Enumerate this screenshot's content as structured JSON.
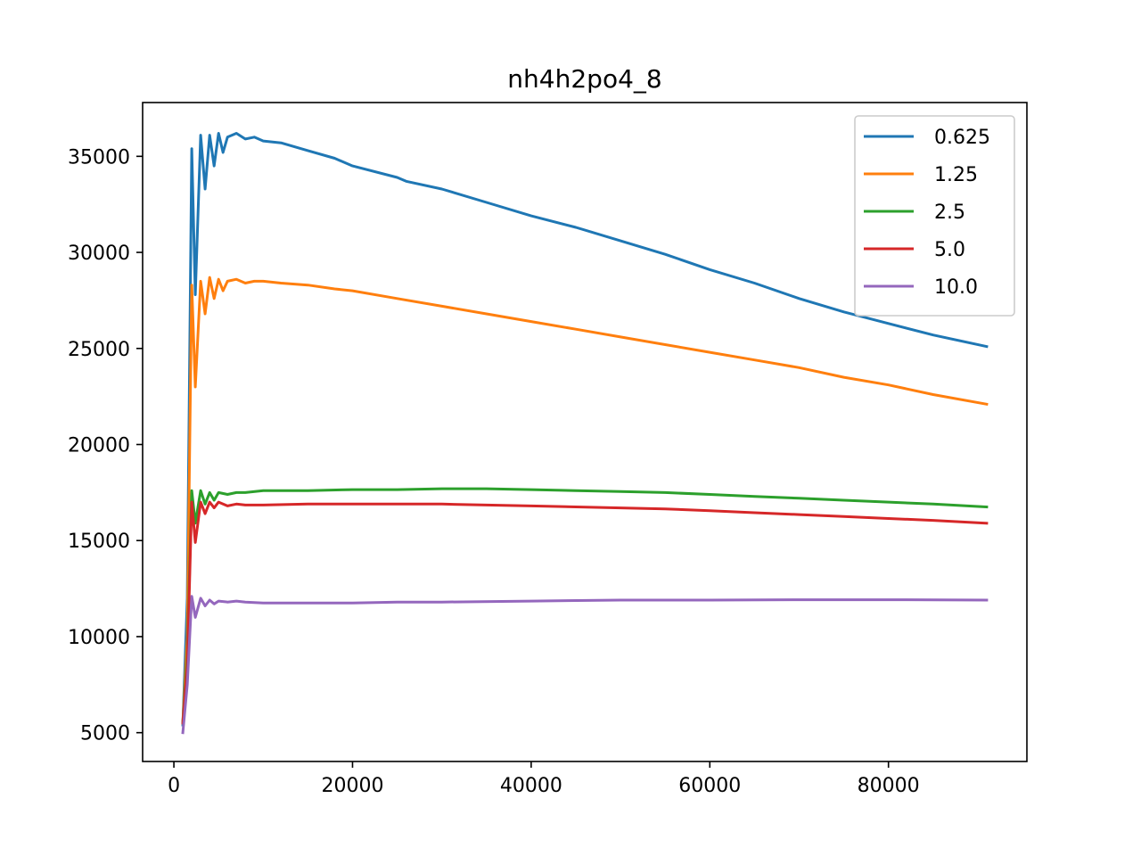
{
  "chart_data": {
    "type": "line",
    "title": "nh4h2po4_8",
    "xlabel": "",
    "ylabel": "",
    "xlim": [
      -3500,
      95500
    ],
    "ylim": [
      3500,
      37800
    ],
    "x_ticks": [
      0,
      20000,
      40000,
      60000,
      80000
    ],
    "x_tick_labels": [
      "0",
      "20000",
      "40000",
      "60000",
      "80000"
    ],
    "y_ticks": [
      5000,
      10000,
      15000,
      20000,
      25000,
      30000,
      35000
    ],
    "y_tick_labels": [
      "5000",
      "10000",
      "15000",
      "20000",
      "25000",
      "30000",
      "35000"
    ],
    "grid": false,
    "legend_position": "top-right",
    "series": [
      {
        "name": "0.625",
        "color": "#1f77b4",
        "points": [
          [
            1000,
            5400
          ],
          [
            1500,
            12000
          ],
          [
            2000,
            35400
          ],
          [
            2400,
            27800
          ],
          [
            3000,
            36100
          ],
          [
            3500,
            33300
          ],
          [
            4000,
            36100
          ],
          [
            4500,
            34500
          ],
          [
            5000,
            36200
          ],
          [
            5500,
            35200
          ],
          [
            6000,
            36000
          ],
          [
            7000,
            36200
          ],
          [
            8000,
            35900
          ],
          [
            9000,
            36000
          ],
          [
            10000,
            35800
          ],
          [
            12000,
            35700
          ],
          [
            15000,
            35300
          ],
          [
            18000,
            34900
          ],
          [
            20000,
            34500
          ],
          [
            25000,
            33900
          ],
          [
            26000,
            33700
          ],
          [
            30000,
            33300
          ],
          [
            35000,
            32600
          ],
          [
            40000,
            31900
          ],
          [
            45000,
            31300
          ],
          [
            50000,
            30600
          ],
          [
            55000,
            29900
          ],
          [
            60000,
            29100
          ],
          [
            65000,
            28400
          ],
          [
            70000,
            27600
          ],
          [
            75000,
            26900
          ],
          [
            80000,
            26300
          ],
          [
            85000,
            25700
          ],
          [
            91000,
            25100
          ]
        ]
      },
      {
        "name": "1.25",
        "color": "#ff7f0e",
        "points": [
          [
            1000,
            5500
          ],
          [
            1500,
            10000
          ],
          [
            2000,
            28300
          ],
          [
            2400,
            23000
          ],
          [
            3000,
            28500
          ],
          [
            3500,
            26800
          ],
          [
            4000,
            28700
          ],
          [
            4500,
            27600
          ],
          [
            5000,
            28600
          ],
          [
            5500,
            28000
          ],
          [
            6000,
            28500
          ],
          [
            7000,
            28600
          ],
          [
            8000,
            28400
          ],
          [
            9000,
            28500
          ],
          [
            10000,
            28500
          ],
          [
            12000,
            28400
          ],
          [
            15000,
            28300
          ],
          [
            18000,
            28100
          ],
          [
            20000,
            28000
          ],
          [
            25000,
            27600
          ],
          [
            30000,
            27200
          ],
          [
            35000,
            26800
          ],
          [
            40000,
            26400
          ],
          [
            45000,
            26000
          ],
          [
            50000,
            25600
          ],
          [
            55000,
            25200
          ],
          [
            60000,
            24800
          ],
          [
            65000,
            24400
          ],
          [
            70000,
            24000
          ],
          [
            75000,
            23500
          ],
          [
            80000,
            23100
          ],
          [
            85000,
            22600
          ],
          [
            91000,
            22100
          ]
        ]
      },
      {
        "name": "2.5",
        "color": "#2ca02c",
        "points": [
          [
            1000,
            5500
          ],
          [
            1500,
            9000
          ],
          [
            2000,
            17600
          ],
          [
            2400,
            15900
          ],
          [
            3000,
            17600
          ],
          [
            3500,
            16900
          ],
          [
            4000,
            17500
          ],
          [
            4500,
            17100
          ],
          [
            5000,
            17500
          ],
          [
            6000,
            17400
          ],
          [
            7000,
            17500
          ],
          [
            8000,
            17500
          ],
          [
            10000,
            17600
          ],
          [
            15000,
            17600
          ],
          [
            20000,
            17650
          ],
          [
            25000,
            17650
          ],
          [
            30000,
            17700
          ],
          [
            35000,
            17700
          ],
          [
            40000,
            17650
          ],
          [
            45000,
            17600
          ],
          [
            50000,
            17550
          ],
          [
            55000,
            17500
          ],
          [
            60000,
            17400
          ],
          [
            65000,
            17300
          ],
          [
            70000,
            17200
          ],
          [
            75000,
            17100
          ],
          [
            80000,
            17000
          ],
          [
            85000,
            16900
          ],
          [
            91000,
            16750
          ]
        ]
      },
      {
        "name": "5.0",
        "color": "#d62728",
        "points": [
          [
            1000,
            5500
          ],
          [
            1500,
            8500
          ],
          [
            2000,
            17000
          ],
          [
            2400,
            14900
          ],
          [
            3000,
            17000
          ],
          [
            3500,
            16400
          ],
          [
            4000,
            17000
          ],
          [
            4500,
            16700
          ],
          [
            5000,
            17000
          ],
          [
            6000,
            16800
          ],
          [
            7000,
            16900
          ],
          [
            8000,
            16850
          ],
          [
            10000,
            16850
          ],
          [
            15000,
            16900
          ],
          [
            20000,
            16900
          ],
          [
            25000,
            16900
          ],
          [
            30000,
            16900
          ],
          [
            35000,
            16850
          ],
          [
            40000,
            16800
          ],
          [
            45000,
            16750
          ],
          [
            50000,
            16700
          ],
          [
            55000,
            16650
          ],
          [
            60000,
            16550
          ],
          [
            65000,
            16450
          ],
          [
            70000,
            16350
          ],
          [
            75000,
            16250
          ],
          [
            80000,
            16150
          ],
          [
            85000,
            16050
          ],
          [
            91000,
            15900
          ]
        ]
      },
      {
        "name": "10.0",
        "color": "#9467bd",
        "points": [
          [
            1000,
            5000
          ],
          [
            1500,
            7500
          ],
          [
            2000,
            12100
          ],
          [
            2400,
            11000
          ],
          [
            3000,
            12000
          ],
          [
            3500,
            11600
          ],
          [
            4000,
            11900
          ],
          [
            4500,
            11700
          ],
          [
            5000,
            11850
          ],
          [
            6000,
            11800
          ],
          [
            7000,
            11850
          ],
          [
            8000,
            11800
          ],
          [
            10000,
            11750
          ],
          [
            15000,
            11750
          ],
          [
            20000,
            11750
          ],
          [
            25000,
            11800
          ],
          [
            30000,
            11800
          ],
          [
            40000,
            11850
          ],
          [
            50000,
            11900
          ],
          [
            60000,
            11900
          ],
          [
            70000,
            11920
          ],
          [
            80000,
            11920
          ],
          [
            91000,
            11900
          ]
        ]
      }
    ]
  }
}
